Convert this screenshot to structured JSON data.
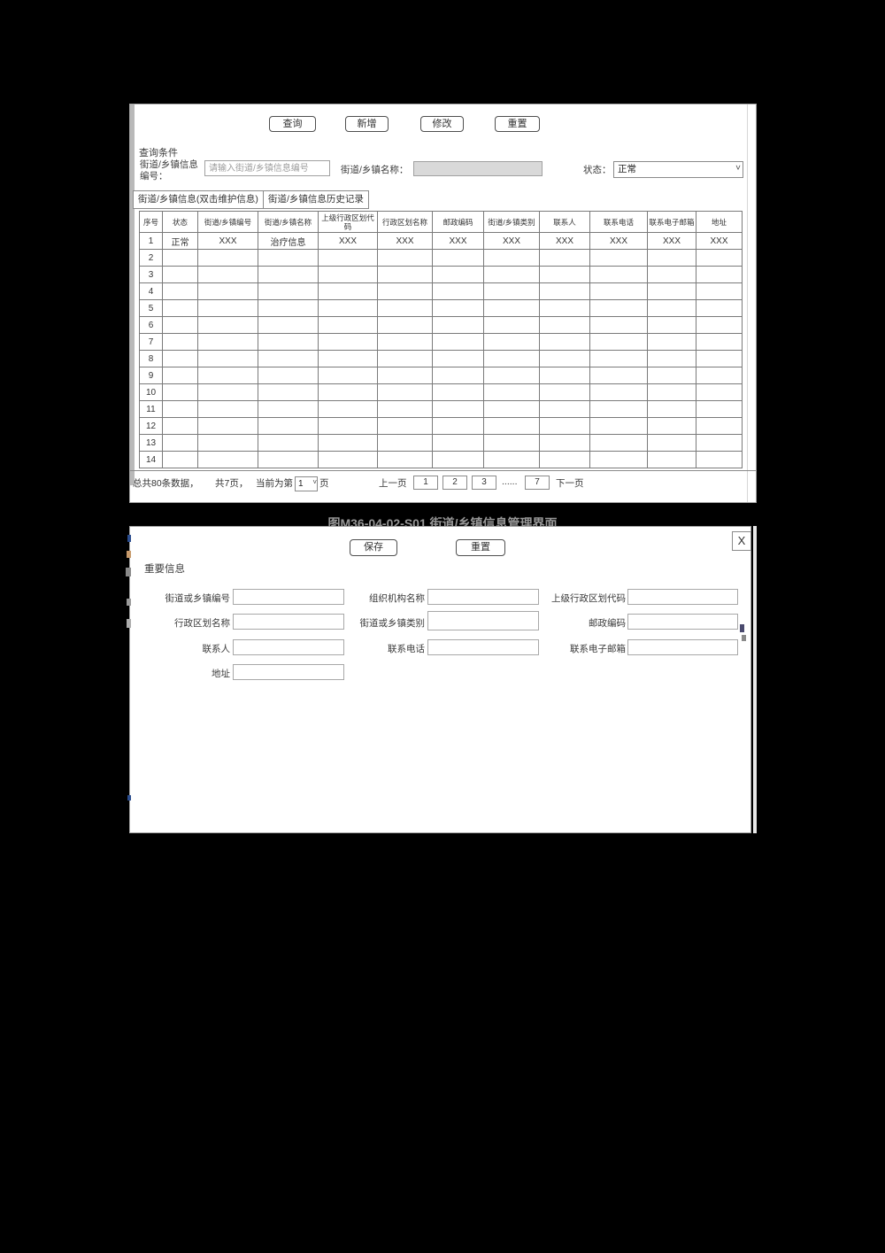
{
  "page": {
    "caption": "图M36-04-02-S01 街道/乡镇信息管理界面"
  },
  "toolbar": {
    "query_label": "查询",
    "add_label": "新增",
    "modify_label": "修改",
    "reset_label": "重置"
  },
  "query_section": {
    "title": "查询条件",
    "code_label": "街道/乡镇信息 编号：",
    "code_placeholder": "请输入街道/乡镇信息编号",
    "name_label": "街道/乡镇名称：",
    "name_value": "",
    "status_label": "状态：",
    "status_value": "正常"
  },
  "tabs": [
    {
      "label": "街道/乡镇信息(双击维护信息)",
      "active": true
    },
    {
      "label": "街道/乡镇信息历史记录",
      "active": false
    }
  ],
  "table": {
    "headers": [
      "序号",
      "状态",
      "街道/乡镇编号",
      "街道/乡镇名称",
      "上级行政区划代码",
      "行政区划名称",
      "邮政编码",
      "街道/乡镇类别",
      "联系人",
      "联系电话",
      "联系电子邮箱",
      "地址"
    ],
    "rows": [
      [
        "1",
        "正常",
        "XXX",
        "治疗信息",
        "XXX",
        "XXX",
        "XXX",
        "XXX",
        "XXX",
        "XXX",
        "XXX",
        "XXX"
      ]
    ],
    "empty_row_numbers": [
      "2",
      "3",
      "4",
      "5",
      "6",
      "7",
      "8",
      "9",
      "10",
      "11",
      "12",
      "13",
      "14"
    ]
  },
  "pagination": {
    "total_text": "总共80条数据，",
    "pages_text": "共7页，",
    "current_prefix": "当前为第",
    "current_page": "1",
    "current_suffix": "页",
    "prev_label": "上一页",
    "page_buttons": [
      "1",
      "2",
      "3"
    ],
    "ellipsis": "......",
    "last_page": "7",
    "next_label": "下一页"
  },
  "dialog": {
    "save_label": "保存",
    "reset_label": "重置",
    "close_label": "X",
    "section_title": "重要信息",
    "fields": [
      {
        "label": "街道或乡镇编号",
        "value": ""
      },
      {
        "label": "组织机构名称",
        "value": ""
      },
      {
        "label": "上级行政区划代码",
        "value": ""
      },
      {
        "label": "行政区划名称",
        "value": ""
      },
      {
        "label": "街道或乡镇类别",
        "value": ""
      },
      {
        "label": "邮政编码",
        "value": ""
      },
      {
        "label": "联系人",
        "value": ""
      },
      {
        "label": "联系电话",
        "value": ""
      },
      {
        "label": "联系电子邮箱",
        "value": ""
      },
      {
        "label": "地址",
        "value": ""
      }
    ]
  }
}
